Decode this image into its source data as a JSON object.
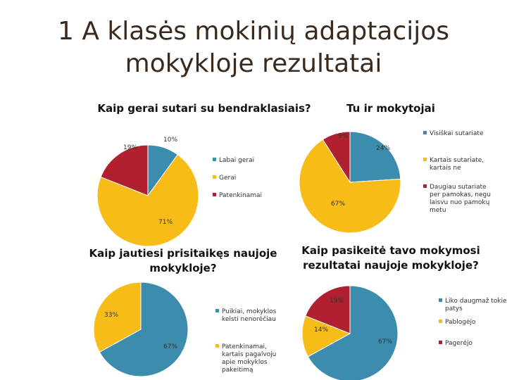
{
  "page": {
    "title": "1 A klasės mokinių adaptacijos mokykloje rezultatai"
  },
  "colors": {
    "teal": "#3b8cad",
    "yellow": "#f7bc17",
    "red": "#b0202f"
  },
  "chart_data": [
    {
      "type": "pie",
      "title": "Kaip gerai sutari su bendraklasiais?",
      "categories": [
        "Labai gerai",
        "Gerai",
        "Patenkinamai"
      ],
      "values": [
        10,
        71,
        19
      ],
      "labels": [
        "10%",
        "71%",
        "19%"
      ],
      "colors": [
        "#3b8cad",
        "#f7bc17",
        "#b0202f"
      ],
      "legend": "right"
    },
    {
      "type": "pie",
      "title": "Tu ir mokytojai",
      "categories": [
        "Visiškai sutariate",
        "Kartais sutariate, kartais ne",
        "Daugiau sutariate per pamokas, negu laisvu nuo pamokų metu"
      ],
      "values": [
        24,
        67,
        9
      ],
      "labels": [
        "24%",
        "67%",
        "9%"
      ],
      "colors": [
        "#3b8cad",
        "#f7bc17",
        "#b0202f"
      ],
      "legend": "right"
    },
    {
      "type": "pie",
      "title": "Kaip jautiesi prisitaikęs naujoje mokykloje?",
      "categories": [
        "Puikiai, mokyklos keisti nenorėčiau",
        "Patenkinamai, kartais pagalvoju apie mokyklos pakeitimą"
      ],
      "values": [
        67,
        33
      ],
      "labels": [
        "67%",
        "33%"
      ],
      "colors": [
        "#3b8cad",
        "#f7bc17"
      ],
      "legend": "right"
    },
    {
      "type": "pie",
      "title": "Kaip pasikeitė tavo mokymosi rezultatai naujoje mokykloje?",
      "categories": [
        "Liko daugmaž tokie patys",
        "Pablogėjo",
        "Pagerėjo"
      ],
      "values": [
        67,
        14,
        19
      ],
      "labels": [
        "67%",
        "14%",
        "19%"
      ],
      "colors": [
        "#3b8cad",
        "#f7bc17",
        "#b0202f"
      ],
      "legend": "right"
    }
  ]
}
